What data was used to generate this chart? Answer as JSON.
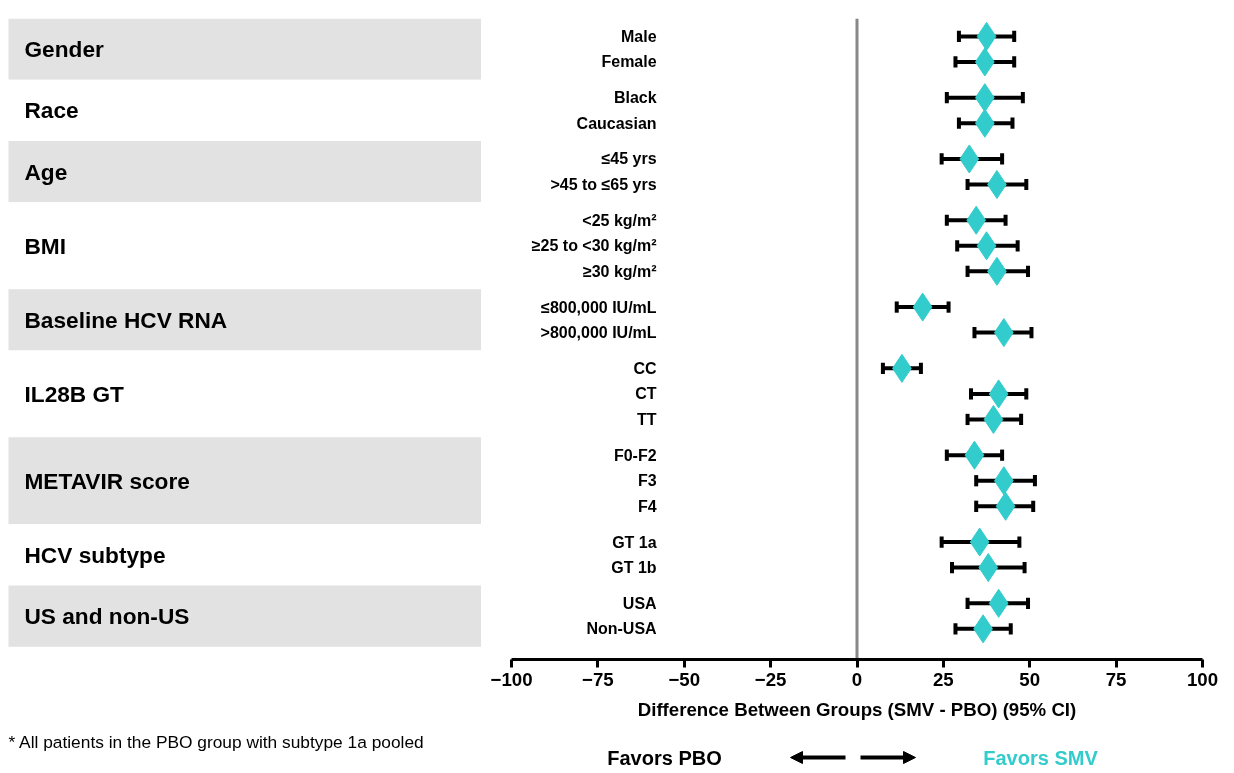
{
  "chart_data": {
    "type": "scatter",
    "orientation": "horizontal",
    "marker": "diamond",
    "grid": false,
    "xlabel": "Difference Between Groups (SMV - PBO) (95% CI)",
    "xlim": [
      -100,
      100
    ],
    "xticks": [
      -100,
      -75,
      -50,
      -25,
      0,
      25,
      50,
      75,
      100
    ],
    "categories": [
      "Male",
      "Female",
      "Black",
      "Caucasian",
      "≤45 yrs",
      ">45 to ≤65 yrs",
      "<25 kg/m²",
      "≥25 to <30 kg/m²",
      "≥30 kg/m²",
      "≤800,000 IU/mL",
      ">800,000 IU/mL",
      "CC",
      "CT",
      "TT",
      "F0-F2",
      "F3",
      "F4",
      "GT 1a",
      "GT 1b",
      "USA",
      "Non-USA"
    ],
    "series": [
      {
        "color": "#33cccc",
        "values": [
          37.5,
          37,
          37,
          37,
          32.5,
          40.5,
          34.5,
          37.5,
          40.5,
          19,
          42.5,
          13,
          41,
          39.5,
          34,
          42.5,
          43,
          35.5,
          38,
          41,
          36.5
        ],
        "errors": [
          [
            29.5,
            45.5
          ],
          [
            28.5,
            45.5
          ],
          [
            26,
            48
          ],
          [
            29.5,
            45
          ],
          [
            24.5,
            42
          ],
          [
            32,
            49
          ],
          [
            26,
            43
          ],
          [
            29,
            46.5
          ],
          [
            32,
            49.5
          ],
          [
            11.5,
            26.5
          ],
          [
            34,
            50.5
          ],
          [
            7.5,
            18.5
          ],
          [
            33,
            49
          ],
          [
            32,
            47.5
          ],
          [
            26,
            42
          ],
          [
            34.5,
            51.5
          ],
          [
            34.5,
            51
          ],
          [
            24.5,
            47
          ],
          [
            27.5,
            48.5
          ],
          [
            32,
            49.5
          ],
          [
            28.5,
            44.5
          ]
        ]
      }
    ],
    "ref_lines": [
      {
        "axis": "x",
        "value": 0,
        "color": "#888888"
      }
    ],
    "annotations": [
      "Gender",
      "Race",
      "Age",
      "BMI",
      "Baseline HCV RNA",
      "IL28B GT",
      "METAVIR score",
      "HCV subtype",
      "US and non-US",
      "* All patients in the PBO group with subtype 1a pooled",
      "Favors PBO",
      "Favors SMV"
    ]
  }
}
